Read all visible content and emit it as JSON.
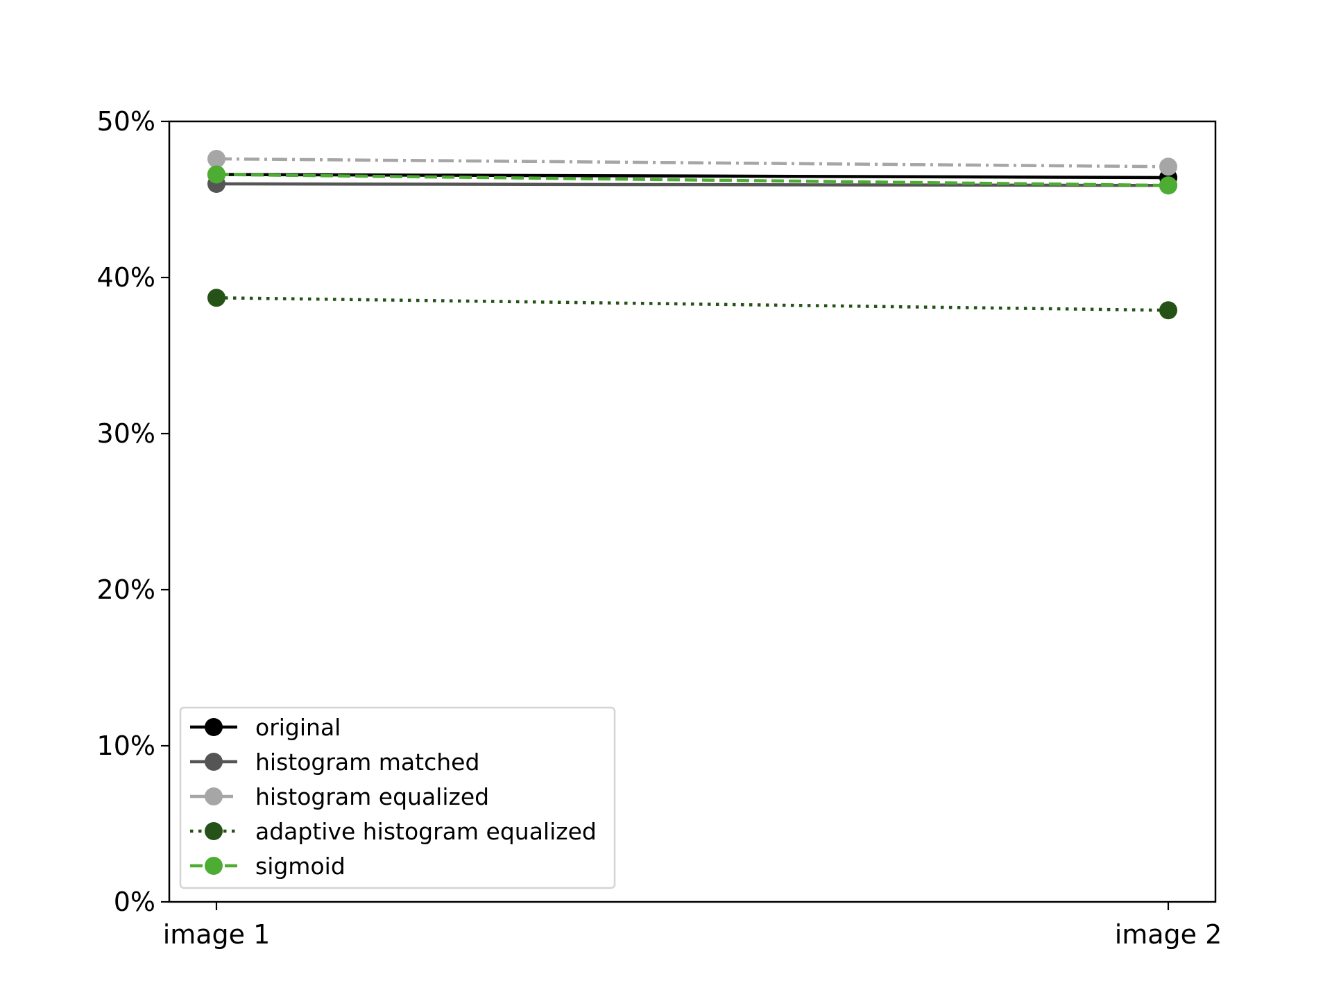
{
  "chart_data": {
    "type": "line",
    "title": "",
    "xlabel": "",
    "ylabel": "",
    "categories": [
      "image 1",
      "image 2"
    ],
    "ylim": [
      0,
      50
    ],
    "y_ticks": [
      {
        "value": 0,
        "label": "0%"
      },
      {
        "value": 10,
        "label": "10%"
      },
      {
        "value": 20,
        "label": "20%"
      },
      {
        "value": 30,
        "label": "30%"
      },
      {
        "value": 40,
        "label": "40%"
      },
      {
        "value": 50,
        "label": "50%"
      }
    ],
    "grid": false,
    "legend_position": "lower-left",
    "series": [
      {
        "name": "original",
        "values": [
          46.6,
          46.4
        ],
        "color": "#000000",
        "line_style": "solid"
      },
      {
        "name": "histogram matched",
        "values": [
          46.0,
          45.9
        ],
        "color": "#555555",
        "line_style": "solid"
      },
      {
        "name": "histogram equalized",
        "values": [
          47.6,
          47.1
        ],
        "color": "#a6a6a6",
        "line_style": "dashdot"
      },
      {
        "name": "adaptive histogram equalized",
        "values": [
          38.7,
          37.9
        ],
        "color": "#245217",
        "line_style": "dotted"
      },
      {
        "name": "sigmoid",
        "values": [
          46.6,
          45.9
        ],
        "color": "#4dac32",
        "line_style": "dashed"
      }
    ]
  }
}
